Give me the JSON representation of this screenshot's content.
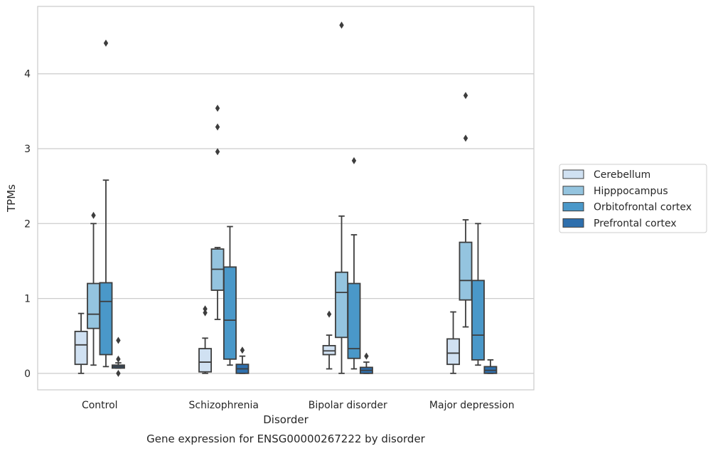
{
  "chart_data": {
    "type": "box",
    "title": "",
    "caption": "Gene expression for ENSG00000267222 by disorder",
    "xlabel": "Disorder",
    "ylabel": "TPMs",
    "ylim": [
      -0.22,
      4.9
    ],
    "yticks": [
      0,
      1,
      2,
      3,
      4
    ],
    "grid": "horizontal",
    "legend_position": "right",
    "categories": [
      "Control",
      "Schizophrenia",
      "Bipolar disorder",
      "Major depression"
    ],
    "series": [
      {
        "name": "Cerebellum",
        "color": "#d0e1f2",
        "boxes": [
          {
            "whislo": 0.0,
            "q1": 0.12,
            "med": 0.38,
            "q3": 0.56,
            "whishi": 0.8,
            "fliers": []
          },
          {
            "whislo": 0.0,
            "q1": 0.02,
            "med": 0.15,
            "q3": 0.33,
            "whishi": 0.47,
            "fliers": [
              0.81,
              0.86
            ]
          },
          {
            "whislo": 0.06,
            "q1": 0.25,
            "med": 0.3,
            "q3": 0.37,
            "whishi": 0.51,
            "fliers": [
              0.79
            ]
          },
          {
            "whislo": 0.0,
            "q1": 0.12,
            "med": 0.27,
            "q3": 0.46,
            "whishi": 0.82,
            "fliers": []
          }
        ]
      },
      {
        "name": "Hipppocampus",
        "color": "#94c4df",
        "boxes": [
          {
            "whislo": 0.11,
            "q1": 0.6,
            "med": 0.79,
            "q3": 1.2,
            "whishi": 2.0,
            "fliers": [
              2.11
            ]
          },
          {
            "whislo": 0.72,
            "q1": 1.11,
            "med": 1.39,
            "q3": 1.66,
            "whishi": 1.68,
            "fliers": [
              2.96,
              3.29,
              3.54
            ]
          },
          {
            "whislo": 0.0,
            "q1": 0.48,
            "med": 1.08,
            "q3": 1.35,
            "whishi": 2.1,
            "fliers": [
              4.65
            ]
          },
          {
            "whislo": 0.62,
            "q1": 0.98,
            "med": 1.24,
            "q3": 1.75,
            "whishi": 2.05,
            "fliers": [
              3.14,
              3.71
            ]
          }
        ]
      },
      {
        "name": "Orbitofrontal cortex",
        "color": "#4a98c9",
        "boxes": [
          {
            "whislo": 0.09,
            "q1": 0.25,
            "med": 0.96,
            "q3": 1.21,
            "whishi": 2.58,
            "fliers": [
              4.41
            ]
          },
          {
            "whislo": 0.11,
            "q1": 0.19,
            "med": 0.71,
            "q3": 1.42,
            "whishi": 1.96,
            "fliers": []
          },
          {
            "whislo": 0.06,
            "q1": 0.2,
            "med": 0.33,
            "q3": 1.2,
            "whishi": 1.85,
            "fliers": [
              2.84
            ]
          },
          {
            "whislo": 0.11,
            "q1": 0.18,
            "med": 0.51,
            "q3": 1.24,
            "whishi": 2.0,
            "fliers": []
          }
        ]
      },
      {
        "name": "Prefrontal cortex",
        "color": "#2e6fad",
        "boxes": [
          {
            "whislo": 0.07,
            "q1": 0.07,
            "med": 0.09,
            "q3": 0.11,
            "whishi": 0.14,
            "fliers": [
              0.0,
              0.19,
              0.44
            ]
          },
          {
            "whislo": 0.0,
            "q1": 0.0,
            "med": 0.06,
            "q3": 0.12,
            "whishi": 0.23,
            "fliers": [
              0.31
            ]
          },
          {
            "whislo": 0.0,
            "q1": 0.0,
            "med": 0.04,
            "q3": 0.08,
            "whishi": 0.15,
            "fliers": [
              0.23
            ]
          },
          {
            "whislo": 0.0,
            "q1": 0.0,
            "med": 0.04,
            "q3": 0.09,
            "whishi": 0.18,
            "fliers": []
          }
        ]
      }
    ]
  }
}
